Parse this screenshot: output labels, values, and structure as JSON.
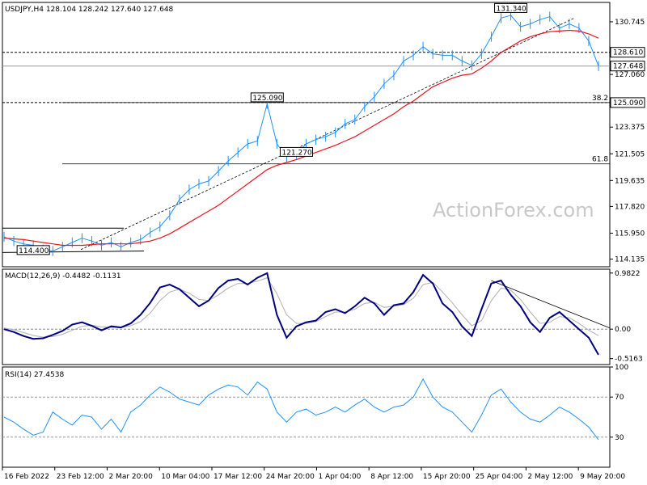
{
  "chart_data": [
    {
      "panel": "price",
      "type": "line",
      "header": "USDJPY,H4  128.104 128.242 127.640 127.648",
      "ylim": [
        113.6,
        132.1
      ],
      "y_ticks": [
        "130.745",
        "128.610",
        "127.060",
        "125.090",
        "123.375",
        "121.505",
        "119.635",
        "117.820",
        "115.950",
        "114.135"
      ],
      "highlighted_levels": [
        {
          "label": "128.610",
          "value": 128.61,
          "style": "dashed",
          "box": "white"
        },
        {
          "label": "127.648",
          "value": 127.648,
          "style": "solid",
          "box": "white"
        },
        {
          "label": "125.090",
          "value": 125.09,
          "style": "dashed",
          "box": "white"
        }
      ],
      "fib_levels": [
        {
          "label": "38.2",
          "value": 125.09
        },
        {
          "label": "61.8",
          "value": 120.8
        }
      ],
      "annotations": [
        {
          "label": "131.340",
          "x_index": 52,
          "value": 131.34
        },
        {
          "label": "125.090",
          "x_index": 27,
          "value": 125.09
        },
        {
          "label": "121.270",
          "x_index": 30,
          "value": 121.27
        },
        {
          "label": "114.400",
          "x_index": 3,
          "value": 114.4
        }
      ],
      "series": [
        {
          "name": "price",
          "color": "#1e90ff",
          "values": [
            115.7,
            115.4,
            115.2,
            115.1,
            114.8,
            114.7,
            115.0,
            115.3,
            115.6,
            115.4,
            115.1,
            115.3,
            115.0,
            115.3,
            115.5,
            116.0,
            116.4,
            117.2,
            118.3,
            119.0,
            119.4,
            119.6,
            120.3,
            121.0,
            121.6,
            122.2,
            122.4,
            125.0,
            122.2,
            121.3,
            121.5,
            122.2,
            122.5,
            122.7,
            123.0,
            123.6,
            123.9,
            124.8,
            125.5,
            126.4,
            127.0,
            128.0,
            128.4,
            129.0,
            128.5,
            128.4,
            128.4,
            128.0,
            127.7,
            128.5,
            129.7,
            131.0,
            131.2,
            130.4,
            130.6,
            130.9,
            131.1,
            130.3,
            130.6,
            130.3,
            129.4,
            127.648
          ]
        },
        {
          "name": "ma",
          "color": "#e8141e",
          "values": [
            115.6,
            115.55,
            115.5,
            115.4,
            115.3,
            115.2,
            115.1,
            115.1,
            115.1,
            115.15,
            115.2,
            115.2,
            115.2,
            115.2,
            115.3,
            115.4,
            115.6,
            115.9,
            116.3,
            116.7,
            117.1,
            117.5,
            117.9,
            118.4,
            118.9,
            119.4,
            119.9,
            120.4,
            120.7,
            120.9,
            121.1,
            121.35,
            121.6,
            121.85,
            122.1,
            122.4,
            122.7,
            123.1,
            123.5,
            123.9,
            124.3,
            124.8,
            125.2,
            125.7,
            126.2,
            126.5,
            126.8,
            127.0,
            127.1,
            127.5,
            128.0,
            128.6,
            129.0,
            129.4,
            129.7,
            129.9,
            130.05,
            130.1,
            130.15,
            130.1,
            129.9,
            129.6
          ]
        }
      ]
    },
    {
      "panel": "macd",
      "type": "line",
      "header": "MACD(12,26,9) -0.4482 -0.1131",
      "ylim": [
        -0.62,
        1.05
      ],
      "y_ticks": [
        "0.9822",
        "0.00",
        "-0.5163"
      ],
      "series": [
        {
          "name": "macd",
          "color": "#000080",
          "values": [
            0.0,
            -0.05,
            -0.12,
            -0.17,
            -0.16,
            -0.1,
            -0.03,
            0.08,
            0.12,
            0.06,
            -0.02,
            0.05,
            0.03,
            0.1,
            0.25,
            0.46,
            0.73,
            0.78,
            0.7,
            0.55,
            0.4,
            0.5,
            0.72,
            0.85,
            0.88,
            0.78,
            0.9,
            0.98,
            0.25,
            -0.15,
            0.05,
            0.12,
            0.15,
            0.3,
            0.35,
            0.28,
            0.4,
            0.55,
            0.45,
            0.25,
            0.42,
            0.45,
            0.65,
            0.95,
            0.8,
            0.45,
            0.3,
            0.05,
            -0.12,
            0.35,
            0.8,
            0.85,
            0.6,
            0.4,
            0.12,
            -0.05,
            0.2,
            0.3,
            0.15,
            0.0,
            -0.15,
            -0.4482
          ]
        },
        {
          "name": "signal",
          "color": "#b0b0b0",
          "values": [
            0.02,
            -0.01,
            -0.06,
            -0.11,
            -0.14,
            -0.13,
            -0.09,
            -0.02,
            0.05,
            0.07,
            0.04,
            0.03,
            0.03,
            0.06,
            0.13,
            0.28,
            0.5,
            0.65,
            0.7,
            0.63,
            0.52,
            0.5,
            0.6,
            0.72,
            0.8,
            0.8,
            0.84,
            0.9,
            0.62,
            0.25,
            0.1,
            0.1,
            0.13,
            0.22,
            0.3,
            0.3,
            0.35,
            0.45,
            0.47,
            0.38,
            0.4,
            0.43,
            0.54,
            0.78,
            0.82,
            0.65,
            0.46,
            0.25,
            0.06,
            0.15,
            0.5,
            0.72,
            0.68,
            0.52,
            0.3,
            0.1,
            0.12,
            0.22,
            0.2,
            0.1,
            -0.02,
            -0.1131
          ]
        }
      ]
    },
    {
      "panel": "rsi",
      "type": "line",
      "header": "RSI(14) 27.4538",
      "ylim": [
        0,
        100
      ],
      "y_ticks": [
        "100",
        "70",
        "30"
      ],
      "series": [
        {
          "name": "rsi",
          "color": "#1e90ff",
          "values": [
            50,
            45,
            38,
            32,
            35,
            55,
            48,
            42,
            52,
            50,
            38,
            48,
            35,
            55,
            62,
            72,
            80,
            75,
            68,
            65,
            62,
            72,
            78,
            82,
            80,
            72,
            85,
            78,
            55,
            45,
            55,
            58,
            52,
            55,
            60,
            55,
            62,
            68,
            60,
            55,
            60,
            62,
            70,
            88,
            70,
            60,
            55,
            45,
            35,
            52,
            72,
            78,
            65,
            55,
            48,
            45,
            52,
            60,
            55,
            48,
            40,
            27.45
          ]
        }
      ]
    }
  ],
  "x_axis_labels": [
    "16 Feb 2022",
    "23 Feb 12:00",
    "2 Mar 20:00",
    "10 Mar 04:00",
    "17 Mar 12:00",
    "24 Mar 20:00",
    "1 Apr 04:00",
    "8 Apr 12:00",
    "15 Apr 20:00",
    "25 Apr 04:00",
    "2 May 12:00",
    "9 May 20:00"
  ],
  "watermark": "ActionForex.com"
}
